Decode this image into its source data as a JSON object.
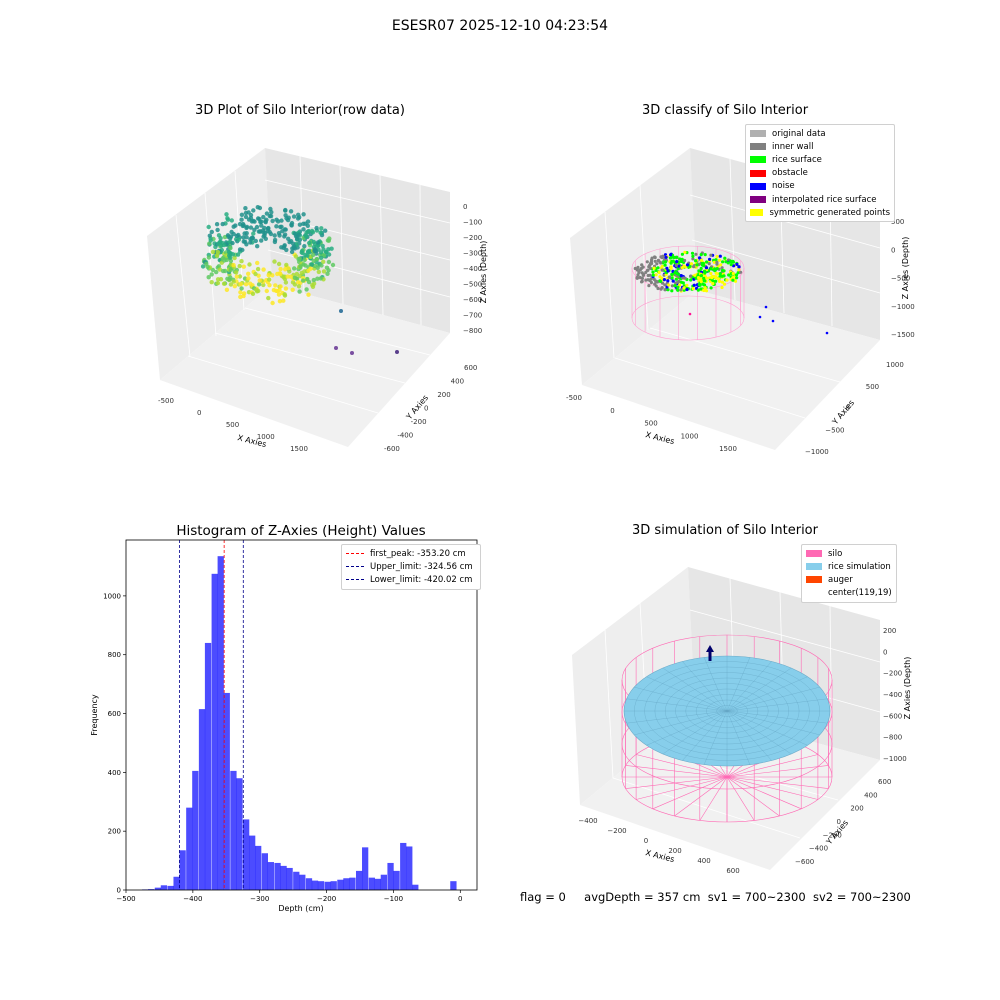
{
  "figure": {
    "title": "ESESR07 2025-12-10 04:23:54",
    "footer": {
      "flag": "flag = 0",
      "avg_depth": "avgDepth = 357 cm",
      "sv1": "sv1 = 700~2300",
      "sv2": "sv2 = 700~2300"
    }
  },
  "chart_data": [
    {
      "type": "scatter3d",
      "title": "3D Plot of Silo Interior(row data)",
      "xlabel": "X Axies",
      "ylabel": "Y Axies",
      "zlabel": "Z Axies (Depth)",
      "x_ticks": [
        "-500",
        "0",
        "500",
        "1000",
        "1500"
      ],
      "y_ticks": [
        "-600",
        "-400",
        "-200",
        "0",
        "200",
        "400",
        "600"
      ],
      "z_ticks": [
        "0",
        "−100",
        "−200",
        "−300",
        "−400",
        "−500",
        "−600",
        "−700",
        "−800"
      ],
      "colormap": "viridis"
    },
    {
      "type": "scatter3d",
      "title": "3D classify of Silo Interior",
      "xlabel": "X Axies",
      "ylabel": "Y Axies",
      "zlabel": "Z Axies (Depth)",
      "x_ticks": [
        "-500",
        "0",
        "500",
        "1000",
        "1500"
      ],
      "y_ticks": [
        "−1000",
        "−500",
        "0",
        "500",
        "1000"
      ],
      "z_ticks": [
        "500",
        "0",
        "−500",
        "−1000",
        "−1500"
      ],
      "legend_position": "top-right",
      "legend": [
        {
          "name": "original data",
          "color": "#b0b0b0"
        },
        {
          "name": "inner wall",
          "color": "#808080"
        },
        {
          "name": "rice surface",
          "color": "#00ff00"
        },
        {
          "name": "obstacle",
          "color": "#ff0000"
        },
        {
          "name": "noise",
          "color": "#0000ff"
        },
        {
          "name": "interpolated rice surface",
          "color": "#800080"
        },
        {
          "name": "symmetric generated points",
          "color": "#ffff00"
        }
      ]
    },
    {
      "type": "bar",
      "title": "Histogram of Z-Axies (Height) Values",
      "xlabel": "Depth (cm)",
      "ylabel": "Frequency",
      "xlim": [
        -500,
        25
      ],
      "ylim": [
        0,
        1190
      ],
      "x_ticks": [
        -500,
        -400,
        -300,
        -200,
        -100,
        0
      ],
      "x_tick_labels": [
        "−500",
        "−400",
        "−300",
        "−200",
        "−100",
        "0"
      ],
      "y_ticks": [
        0,
        200,
        400,
        600,
        800,
        1000
      ],
      "bar_color": "#0000ff",
      "bin_width": 9.4,
      "bin_starts": [
        -476,
        -467,
        -457,
        -448,
        -438,
        -429,
        -420,
        -410,
        -401,
        -391,
        -382,
        -372,
        -363,
        -354,
        -344,
        -335,
        -325,
        -316,
        -307,
        -297,
        -288,
        -278,
        -269,
        -260,
        -250,
        -241,
        -231,
        -222,
        -213,
        -203,
        -194,
        -184,
        -175,
        -166,
        -156,
        -147,
        -137,
        -128,
        -119,
        -109,
        -100,
        -90,
        -81,
        -72,
        -62,
        -53,
        -43,
        -34,
        -25,
        -15,
        -6
      ],
      "values": [
        2,
        3,
        8,
        16,
        14,
        45,
        135,
        280,
        405,
        615,
        840,
        1075,
        1135,
        670,
        405,
        380,
        240,
        185,
        150,
        125,
        95,
        92,
        82,
        75,
        62,
        52,
        40,
        32,
        30,
        28,
        30,
        35,
        40,
        42,
        65,
        145,
        42,
        38,
        52,
        92,
        65,
        160,
        148,
        18,
        0,
        0,
        0,
        0,
        0,
        30,
        0
      ],
      "lines": [
        {
          "name": "first_peak: -353.20 cm",
          "x": -353.2,
          "color": "#ff0000"
        },
        {
          "name": "Upper_limit: -324.56 cm",
          "x": -324.56,
          "color": "#00008b"
        },
        {
          "name": "Lower_limit: -420.02 cm",
          "x": -420.02,
          "color": "#00008b"
        }
      ],
      "legend_position": "top-right"
    },
    {
      "type": "surface3d",
      "title": "3D simulation of Silo Interior",
      "xlabel": "X Axies",
      "ylabel": "Y Axies",
      "zlabel": "Z Axies (Depth)",
      "x_ticks": [
        "−400",
        "−200",
        "0",
        "200",
        "400",
        "600"
      ],
      "y_ticks": [
        "−600",
        "−400",
        "−200",
        "0",
        "200",
        "400",
        "600"
      ],
      "z_ticks": [
        "200",
        "0",
        "−200",
        "−400",
        "−600",
        "−800",
        "−1000"
      ],
      "legend_position": "top-right",
      "legend": [
        {
          "name": "silo",
          "color": "#ff69b4"
        },
        {
          "name": "rice simulation",
          "color": "#87ceeb"
        },
        {
          "name": "auger",
          "color": "#ff4500"
        },
        {
          "name": "center(119,19)",
          "color": "#ffffff"
        }
      ]
    }
  ]
}
